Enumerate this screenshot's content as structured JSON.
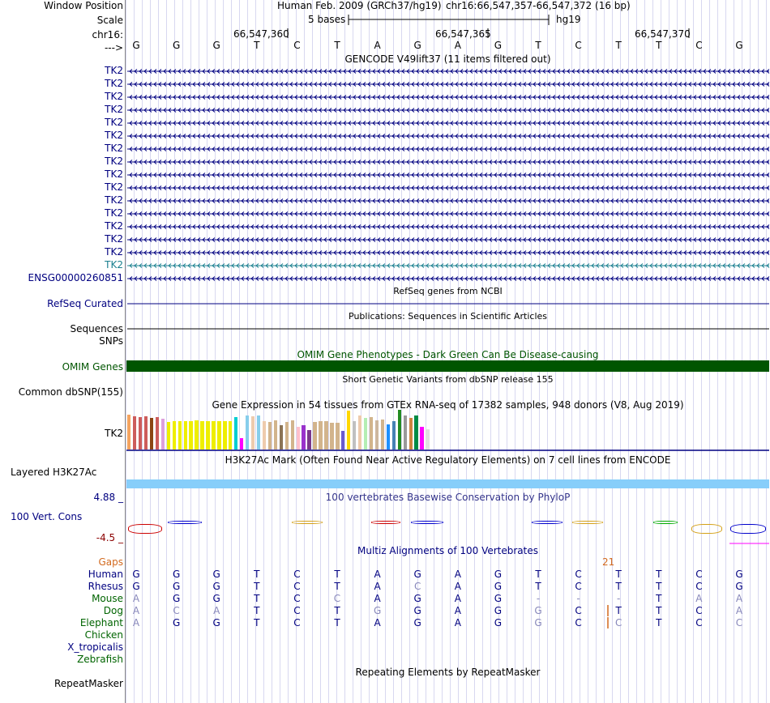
{
  "header": {
    "window_position_label": "Window Position",
    "assembly": "Human Feb. 2009 (GRCh37/hg19)",
    "position": "chr16:66,547,357-66,547,372 (16 bp)",
    "scale_label": "Scale",
    "scale_text": "5 bases",
    "scale_db": "hg19",
    "chrom_label": "chr16:",
    "coord_labels": [
      "66,547,360",
      "66,547,365",
      "66,547,370"
    ],
    "strand_label": "--->",
    "bases": [
      "G",
      "G",
      "G",
      "T",
      "C",
      "T",
      "A",
      "G",
      "A",
      "G",
      "T",
      "C",
      "T",
      "T",
      "C",
      "G"
    ]
  },
  "gencode": {
    "title": "GENCODE V49lift37 (11 items filtered out)",
    "rows": [
      "TK2",
      "TK2",
      "TK2",
      "TK2",
      "TK2",
      "TK2",
      "TK2",
      "TK2",
      "TK2",
      "TK2",
      "TK2",
      "TK2",
      "TK2",
      "TK2",
      "TK2",
      "TK2",
      "ENSG00000260851"
    ],
    "colors": [
      "#000080",
      "#1a7f8f"
    ]
  },
  "refseq": {
    "title": "RefSeq genes from NCBI",
    "label": "RefSeq Curated"
  },
  "pubs": {
    "title": "Publications: Sequences in Scientific Articles",
    "label": "Sequences"
  },
  "snps_label": "SNPs",
  "omim": {
    "title": "OMIM Gene Phenotypes - Dark Green Can Be Disease-causing",
    "label": "OMIM Genes",
    "color": "#005500"
  },
  "dbsnp": {
    "title": "Short Genetic Variants from dbSNP release 155",
    "label": "Common dbSNP(155)"
  },
  "gtex": {
    "title": "Gene Expression in 54 tissues from GTEx RNA-seq of 17382 samples, 948 donors (V8, Aug 2019)",
    "label": "TK2",
    "tissue_colors": [
      "#f4a460",
      "#cd5c5c",
      "#cd5c5c",
      "#cd5c5c",
      "#8b4513",
      "#cd5c5c",
      "#dda0dd",
      "#eeee00",
      "#eeee00",
      "#eeee00",
      "#eeee00",
      "#eeee00",
      "#eeee00",
      "#eeee00",
      "#eeee00",
      "#eeee00",
      "#eeee00",
      "#eeee00",
      "#eeee00",
      "#00ced1",
      "#ff00ff",
      "#87ceeb",
      "#eecbad",
      "#87ceeb",
      "#eecbad",
      "#d2b48c",
      "#d2b48c",
      "#8b7355",
      "#d2b48c",
      "#d2b48c",
      "#ffc0cb",
      "#9932cc",
      "#7a378b",
      "#d2b48c",
      "#d2b48c",
      "#d2b48c",
      "#d2b48c",
      "#d2b48c",
      "#6a5acd",
      "#ffd700",
      "#c0c0c0",
      "#eecbad",
      "#b4eeb4",
      "#d2b48c",
      "#cdb79e",
      "#d2b48c",
      "#1e90ff",
      "#4682b4",
      "#228b22",
      "#999999",
      "#cd853f",
      "#008b45",
      "#ff00ff",
      "#e0e0e0"
    ],
    "tissue_values": [
      0.85,
      0.82,
      0.8,
      0.82,
      0.78,
      0.79,
      0.76,
      0.68,
      0.69,
      0.7,
      0.69,
      0.7,
      0.72,
      0.7,
      0.7,
      0.69,
      0.7,
      0.69,
      0.7,
      0.8,
      0.27,
      0.84,
      0.82,
      0.84,
      0.7,
      0.67,
      0.72,
      0.6,
      0.68,
      0.72,
      0.55,
      0.6,
      0.48,
      0.68,
      0.7,
      0.7,
      0.65,
      0.66,
      0.45,
      0.95,
      0.7,
      0.84,
      0.78,
      0.8,
      0.72,
      0.74,
      0.62,
      0.7,
      0.98,
      0.84,
      0.78,
      0.84,
      0.55,
      0.5
    ]
  },
  "h3k27ac": {
    "title": "H3K27Ac Mark (Often Found Near Active Regulatory Elements) on 7 cell lines from ENCODE",
    "label": "Layered H3K27Ac",
    "color": "#87cefa"
  },
  "cons": {
    "title": "100 vertebrates Basewise Conservation by PhyloP",
    "label": "100 Vert. Cons",
    "ymax": "4.88 _",
    "ymin": "-4.5 _"
  },
  "multiz": {
    "title": "Multiz Alignments of 100 Vertebrates",
    "gaps_label": "Gaps",
    "gaps_value": "21",
    "species": [
      {
        "name": "Human",
        "color": "#000080",
        "seq": [
          "G",
          "G",
          "G",
          "T",
          "C",
          "T",
          "A",
          "G",
          "A",
          "G",
          "T",
          "C",
          "T",
          "T",
          "C",
          "G"
        ]
      },
      {
        "name": "Rhesus",
        "color": "#000080",
        "seq": [
          "G",
          "G",
          "G",
          "T",
          "C",
          "T",
          "A",
          "C",
          "A",
          "G",
          "T",
          "C",
          "T",
          "T",
          "C",
          "G"
        ]
      },
      {
        "name": "Mouse",
        "color": "#006400",
        "seq": [
          "A",
          "G",
          "G",
          "T",
          "C",
          "C",
          "A",
          "G",
          "A",
          "G",
          "-",
          "-",
          "-",
          "T",
          "A",
          "A"
        ]
      },
      {
        "name": "Dog",
        "color": "#006400",
        "seq": [
          "A",
          "C",
          "A",
          "T",
          "C",
          "T",
          "G",
          "G",
          "A",
          "G",
          "G",
          "C",
          "T",
          "T",
          "C",
          "A"
        ]
      },
      {
        "name": "Elephant",
        "color": "#006400",
        "seq": [
          "A",
          "G",
          "G",
          "T",
          "C",
          "T",
          "A",
          "G",
          "A",
          "G",
          "G",
          "C",
          "C",
          "T",
          "C",
          "C"
        ]
      },
      {
        "name": "Chicken",
        "color": "#006400",
        "seq": []
      },
      {
        "name": "X_tropicalis",
        "color": "#000080",
        "seq": []
      },
      {
        "name": "Zebrafish",
        "color": "#006400",
        "seq": []
      }
    ]
  },
  "repeatmasker": {
    "title": "Repeating Elements by RepeatMasker",
    "label": "RepeatMasker"
  },
  "colors": {
    "nav": "#000080",
    "gaps": "#d2691e",
    "cons_title": "#34348b",
    "ymin": "#8b0000"
  }
}
